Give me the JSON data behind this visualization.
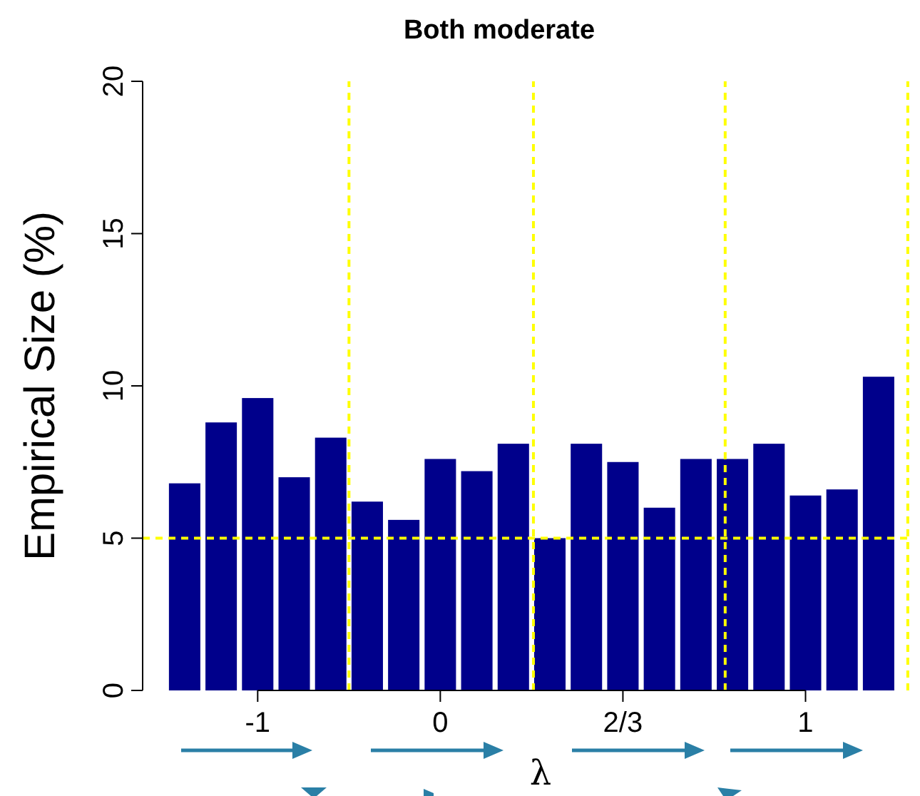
{
  "chart_data": {
    "type": "bar",
    "title": "Both moderate",
    "xlabel": "λ",
    "ylabel": "Empirical Size (%)",
    "categories": [
      null,
      null,
      "-1",
      null,
      null,
      null,
      null,
      "0",
      null,
      null,
      null,
      null,
      "2/3",
      null,
      null,
      null,
      null,
      "1",
      null,
      null
    ],
    "values": [
      6.8,
      8.8,
      9.6,
      7.0,
      8.3,
      6.2,
      5.6,
      7.6,
      7.2,
      8.1,
      5.0,
      8.1,
      7.5,
      6.0,
      7.6,
      7.6,
      8.1,
      6.4,
      6.6,
      10.3
    ],
    "color": "#00008b",
    "ylim": [
      0,
      20
    ],
    "yticks": [
      0,
      5,
      10,
      15,
      20
    ],
    "ref_lines": [
      {
        "axis": "y",
        "value": 5,
        "color": "#ffff00",
        "line_style": "dashed"
      }
    ]
  }
}
